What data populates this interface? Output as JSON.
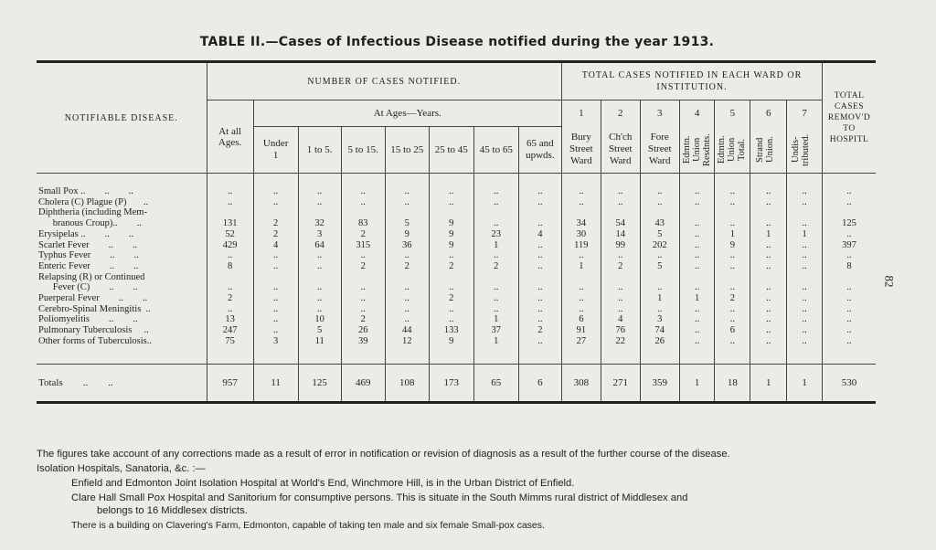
{
  "title": "TABLE II.—Cases of Infectious Disease notified during the year 1913.",
  "page_number": "82",
  "headers": {
    "notifiable_disease": "Notifiable Disease.",
    "number_of_cases": "Number of Cases Notified.",
    "ward_totals": "Total Cases Notified in each Ward or Institution.",
    "removed": "Total Cases Remov'd to Hospitl",
    "at_all_ages": "At all Ages.",
    "at_ages": "At Ages—Years.",
    "ages": [
      "Under 1",
      "1 to 5.",
      "5 to 15.",
      "15 to 25",
      "25 to 45",
      "45 to 65",
      "65 and upwds."
    ],
    "ward_numbers": [
      "1",
      "2",
      "3",
      "4",
      "5",
      "6",
      "7"
    ],
    "ward_names": [
      "Bury Street Ward",
      "Ch'ch Street Ward",
      "Fore Street Ward",
      "Edmtn. Union Resdnts.",
      "Edmtn. Union Total.",
      "Strand Union.",
      "Undis-tributed."
    ]
  },
  "rows": [
    {
      "disease": "Small Pox ..        ..        ..",
      "v": [
        "..",
        "..",
        "..",
        "..",
        "..",
        "..",
        "..",
        "..",
        "..",
        "..",
        "..",
        "..",
        "..",
        "..",
        "..",
        ".."
      ]
    },
    {
      "disease": "Cholera (C) Plague (P)       ..",
      "v": [
        "..",
        "..",
        "..",
        "..",
        "..",
        "..",
        "..",
        "..",
        "..",
        "..",
        "..",
        "..",
        "..",
        "..",
        "..",
        ".."
      ]
    },
    {
      "disease": "Diphtheria (including Mem-",
      "v": [
        "",
        "",
        "",
        "",
        "",
        "",
        "",
        "",
        "",
        "",
        "",
        "",
        "",
        "",
        "",
        ""
      ]
    },
    {
      "disease": "      branous Croup)..        ..",
      "v": [
        "131",
        "2",
        "32",
        "83",
        "5",
        "9",
        "..",
        "..",
        "34",
        "54",
        "43",
        "..",
        "..",
        "..",
        "..",
        "125"
      ]
    },
    {
      "disease": "Erysipelas ..        ..        ..",
      "v": [
        "52",
        "2",
        "3",
        "2",
        "9",
        "9",
        "23",
        "4",
        "30",
        "14",
        "5",
        "..",
        "1",
        "1",
        "1",
        ".."
      ]
    },
    {
      "disease": "Scarlet Fever        ..        ..",
      "v": [
        "429",
        "4",
        "64",
        "315",
        "36",
        "9",
        "1",
        "..",
        "119",
        "99",
        "202",
        "..",
        "9",
        "..",
        "..",
        "397"
      ]
    },
    {
      "disease": "Typhus Fever        ..        ..",
      "v": [
        "..",
        "..",
        "..",
        "..",
        "..",
        "..",
        "..",
        "..",
        "..",
        "..",
        "..",
        "..",
        "..",
        "..",
        "..",
        ".."
      ]
    },
    {
      "disease": "Enteric Fever        ..        ..",
      "v": [
        "8",
        "..",
        "..",
        "2",
        "2",
        "2",
        "2",
        "..",
        "1",
        "2",
        "5",
        "..",
        "..",
        "..",
        "..",
        "8"
      ]
    },
    {
      "disease": "Relapsing (R) or Continued",
      "v": [
        "",
        "",
        "",
        "",
        "",
        "",
        "",
        "",
        "",
        "",
        "",
        "",
        "",
        "",
        "",
        ""
      ]
    },
    {
      "disease": "      Fever (C)        ..        ..",
      "v": [
        "..",
        "..",
        "..",
        "..",
        "..",
        "..",
        "..",
        "..",
        "..",
        "..",
        "..",
        "..",
        "..",
        "..",
        "..",
        ".."
      ]
    },
    {
      "disease": "Puerperal Fever        ..        ..",
      "v": [
        "2",
        "..",
        "..",
        "..",
        "..",
        "2",
        "..",
        "..",
        "..",
        "..",
        "1",
        "1",
        "2",
        "..",
        "..",
        ".."
      ]
    },
    {
      "disease": "Cerebro-Spinal Meningitis  ..",
      "v": [
        "..",
        "..",
        "..",
        "..",
        "..",
        "..",
        "..",
        "..",
        "..",
        "..",
        "..",
        "..",
        "..",
        "..",
        "..",
        ".."
      ]
    },
    {
      "disease": "Poliomyelitis        ..        ..",
      "v": [
        "13",
        "..",
        "10",
        "2",
        "..",
        "..",
        "1",
        "..",
        "6",
        "4",
        "3",
        "..",
        "..",
        "..",
        "..",
        ".."
      ]
    },
    {
      "disease": "Pulmonary Tuberculosis     ..",
      "v": [
        "247",
        "..",
        "5",
        "26",
        "44",
        "133",
        "37",
        "2",
        "91",
        "76",
        "74",
        "..",
        "6",
        "..",
        "..",
        ".."
      ]
    },
    {
      "disease": "Other forms of Tuberculosis..",
      "v": [
        "75",
        "3",
        "11",
        "39",
        "12",
        "9",
        "1",
        "..",
        "27",
        "22",
        "26",
        "..",
        "..",
        "..",
        "..",
        ".."
      ]
    }
  ],
  "totals": {
    "label": "Totals        ..        ..",
    "v": [
      "957",
      "11",
      "125",
      "469",
      "108",
      "173",
      "65",
      "6",
      "308",
      "271",
      "359",
      "1",
      "18",
      "1",
      "1",
      "530"
    ]
  },
  "notes": {
    "line1": "The figures take account of any corrections made as a result of error in notification or revision of diagnosis as a result of the further course of the disease.",
    "line2": "Isolation Hospitals, Sanatoria, &c. :—",
    "line3": "Enfield and Edmonton Joint Isolation Hospital at World's End, Winchmore Hill, is in the Urban District of Enfield.",
    "line4": "Clare Hall Small Pox Hospital and Sanitorium for consumptive persons.  This is situate in the South Mimms rural district of Middlesex and",
    "line5": "belongs to 16 Middlesex districts.",
    "line6": "There is a building on Clavering's Farm, Edmonton, capable of taking ten male and six female Small-pox cases."
  }
}
